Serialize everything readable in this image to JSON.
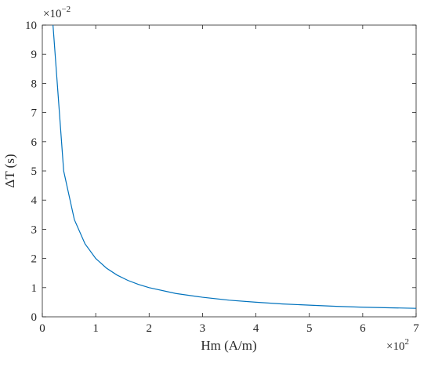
{
  "chart_data": {
    "type": "line",
    "xlabel": "Hm (A/m)",
    "ylabel": "ΔT (s)",
    "x_multiplier": {
      "base": "×10",
      "exponent": "2"
    },
    "y_multiplier": {
      "base": "×10",
      "exponent": "−2"
    },
    "xlim": [
      0,
      7
    ],
    "ylim": [
      0,
      10
    ],
    "xticks": [
      "0",
      "1",
      "2",
      "3",
      "4",
      "5",
      "6",
      "7"
    ],
    "yticks": [
      "0",
      "1",
      "2",
      "3",
      "4",
      "5",
      "6",
      "7",
      "8",
      "9",
      "10"
    ],
    "grid": false,
    "line_color": "#0072BD",
    "series": [
      {
        "x": [
          0.2,
          0.4,
          0.6,
          0.8,
          1.0,
          1.2,
          1.4,
          1.6,
          1.8,
          2.0,
          2.5,
          3.0,
          3.5,
          4.0,
          4.5,
          5.0,
          5.5,
          6.0,
          6.5,
          7.0
        ],
        "values": [
          10.0,
          5.0,
          3.33,
          2.5,
          2.0,
          1.67,
          1.43,
          1.25,
          1.11,
          1.0,
          0.8,
          0.67,
          0.57,
          0.5,
          0.44,
          0.4,
          0.36,
          0.33,
          0.31,
          0.29
        ]
      }
    ]
  }
}
